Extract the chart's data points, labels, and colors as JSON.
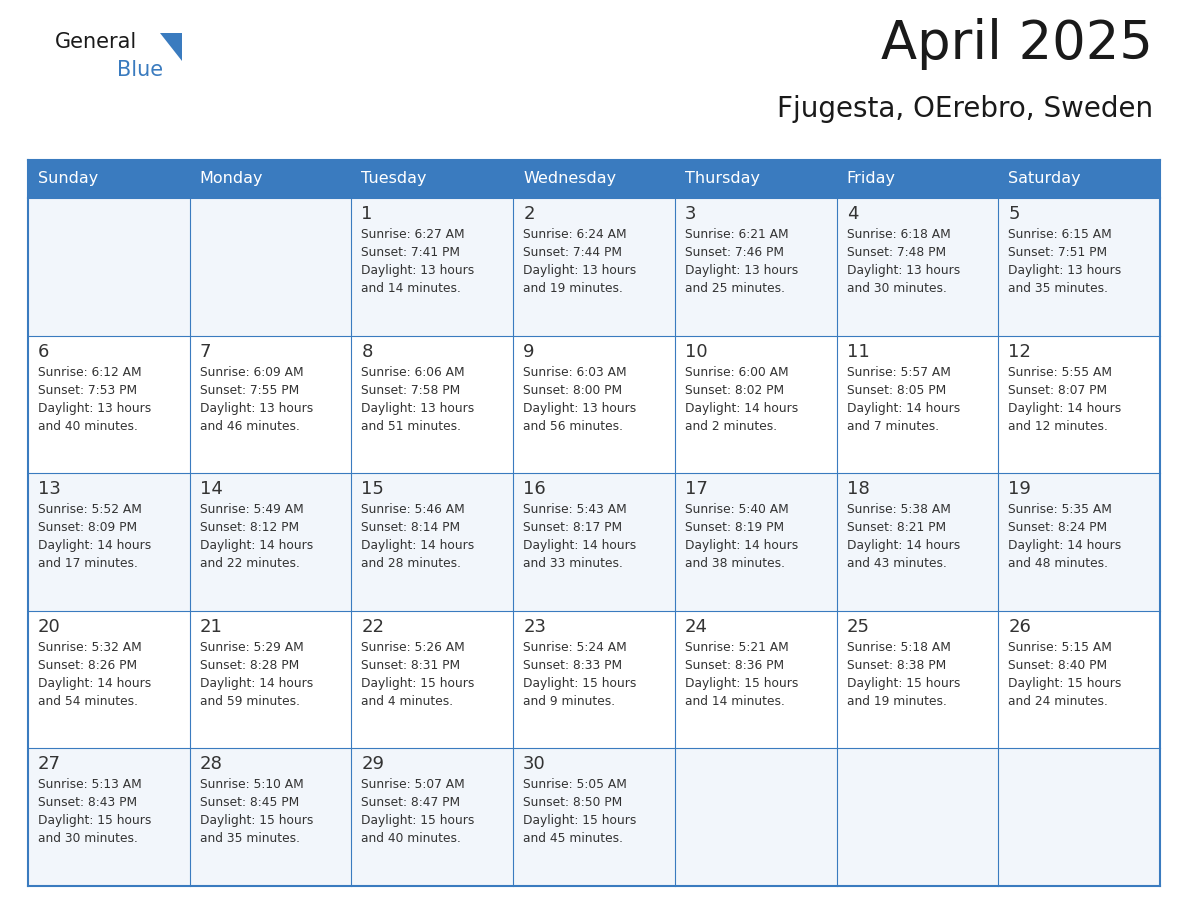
{
  "title": "April 2025",
  "subtitle": "Fjugesta, OErebro, Sweden",
  "header_color": "#3a7bbf",
  "header_text_color": "#ffffff",
  "cell_bg_even": "#f2f6fb",
  "cell_bg_odd": "#ffffff",
  "border_color": "#3a7bbf",
  "row_line_color": "#3a7bbf",
  "text_color": "#333333",
  "day_headers": [
    "Sunday",
    "Monday",
    "Tuesday",
    "Wednesday",
    "Thursday",
    "Friday",
    "Saturday"
  ],
  "weeks": [
    [
      {
        "day": "",
        "text": ""
      },
      {
        "day": "",
        "text": ""
      },
      {
        "day": "1",
        "text": "Sunrise: 6:27 AM\nSunset: 7:41 PM\nDaylight: 13 hours\nand 14 minutes."
      },
      {
        "day": "2",
        "text": "Sunrise: 6:24 AM\nSunset: 7:44 PM\nDaylight: 13 hours\nand 19 minutes."
      },
      {
        "day": "3",
        "text": "Sunrise: 6:21 AM\nSunset: 7:46 PM\nDaylight: 13 hours\nand 25 minutes."
      },
      {
        "day": "4",
        "text": "Sunrise: 6:18 AM\nSunset: 7:48 PM\nDaylight: 13 hours\nand 30 minutes."
      },
      {
        "day": "5",
        "text": "Sunrise: 6:15 AM\nSunset: 7:51 PM\nDaylight: 13 hours\nand 35 minutes."
      }
    ],
    [
      {
        "day": "6",
        "text": "Sunrise: 6:12 AM\nSunset: 7:53 PM\nDaylight: 13 hours\nand 40 minutes."
      },
      {
        "day": "7",
        "text": "Sunrise: 6:09 AM\nSunset: 7:55 PM\nDaylight: 13 hours\nand 46 minutes."
      },
      {
        "day": "8",
        "text": "Sunrise: 6:06 AM\nSunset: 7:58 PM\nDaylight: 13 hours\nand 51 minutes."
      },
      {
        "day": "9",
        "text": "Sunrise: 6:03 AM\nSunset: 8:00 PM\nDaylight: 13 hours\nand 56 minutes."
      },
      {
        "day": "10",
        "text": "Sunrise: 6:00 AM\nSunset: 8:02 PM\nDaylight: 14 hours\nand 2 minutes."
      },
      {
        "day": "11",
        "text": "Sunrise: 5:57 AM\nSunset: 8:05 PM\nDaylight: 14 hours\nand 7 minutes."
      },
      {
        "day": "12",
        "text": "Sunrise: 5:55 AM\nSunset: 8:07 PM\nDaylight: 14 hours\nand 12 minutes."
      }
    ],
    [
      {
        "day": "13",
        "text": "Sunrise: 5:52 AM\nSunset: 8:09 PM\nDaylight: 14 hours\nand 17 minutes."
      },
      {
        "day": "14",
        "text": "Sunrise: 5:49 AM\nSunset: 8:12 PM\nDaylight: 14 hours\nand 22 minutes."
      },
      {
        "day": "15",
        "text": "Sunrise: 5:46 AM\nSunset: 8:14 PM\nDaylight: 14 hours\nand 28 minutes."
      },
      {
        "day": "16",
        "text": "Sunrise: 5:43 AM\nSunset: 8:17 PM\nDaylight: 14 hours\nand 33 minutes."
      },
      {
        "day": "17",
        "text": "Sunrise: 5:40 AM\nSunset: 8:19 PM\nDaylight: 14 hours\nand 38 minutes."
      },
      {
        "day": "18",
        "text": "Sunrise: 5:38 AM\nSunset: 8:21 PM\nDaylight: 14 hours\nand 43 minutes."
      },
      {
        "day": "19",
        "text": "Sunrise: 5:35 AM\nSunset: 8:24 PM\nDaylight: 14 hours\nand 48 minutes."
      }
    ],
    [
      {
        "day": "20",
        "text": "Sunrise: 5:32 AM\nSunset: 8:26 PM\nDaylight: 14 hours\nand 54 minutes."
      },
      {
        "day": "21",
        "text": "Sunrise: 5:29 AM\nSunset: 8:28 PM\nDaylight: 14 hours\nand 59 minutes."
      },
      {
        "day": "22",
        "text": "Sunrise: 5:26 AM\nSunset: 8:31 PM\nDaylight: 15 hours\nand 4 minutes."
      },
      {
        "day": "23",
        "text": "Sunrise: 5:24 AM\nSunset: 8:33 PM\nDaylight: 15 hours\nand 9 minutes."
      },
      {
        "day": "24",
        "text": "Sunrise: 5:21 AM\nSunset: 8:36 PM\nDaylight: 15 hours\nand 14 minutes."
      },
      {
        "day": "25",
        "text": "Sunrise: 5:18 AM\nSunset: 8:38 PM\nDaylight: 15 hours\nand 19 minutes."
      },
      {
        "day": "26",
        "text": "Sunrise: 5:15 AM\nSunset: 8:40 PM\nDaylight: 15 hours\nand 24 minutes."
      }
    ],
    [
      {
        "day": "27",
        "text": "Sunrise: 5:13 AM\nSunset: 8:43 PM\nDaylight: 15 hours\nand 30 minutes."
      },
      {
        "day": "28",
        "text": "Sunrise: 5:10 AM\nSunset: 8:45 PM\nDaylight: 15 hours\nand 35 minutes."
      },
      {
        "day": "29",
        "text": "Sunrise: 5:07 AM\nSunset: 8:47 PM\nDaylight: 15 hours\nand 40 minutes."
      },
      {
        "day": "30",
        "text": "Sunrise: 5:05 AM\nSunset: 8:50 PM\nDaylight: 15 hours\nand 45 minutes."
      },
      {
        "day": "",
        "text": ""
      },
      {
        "day": "",
        "text": ""
      },
      {
        "day": "",
        "text": ""
      }
    ]
  ]
}
